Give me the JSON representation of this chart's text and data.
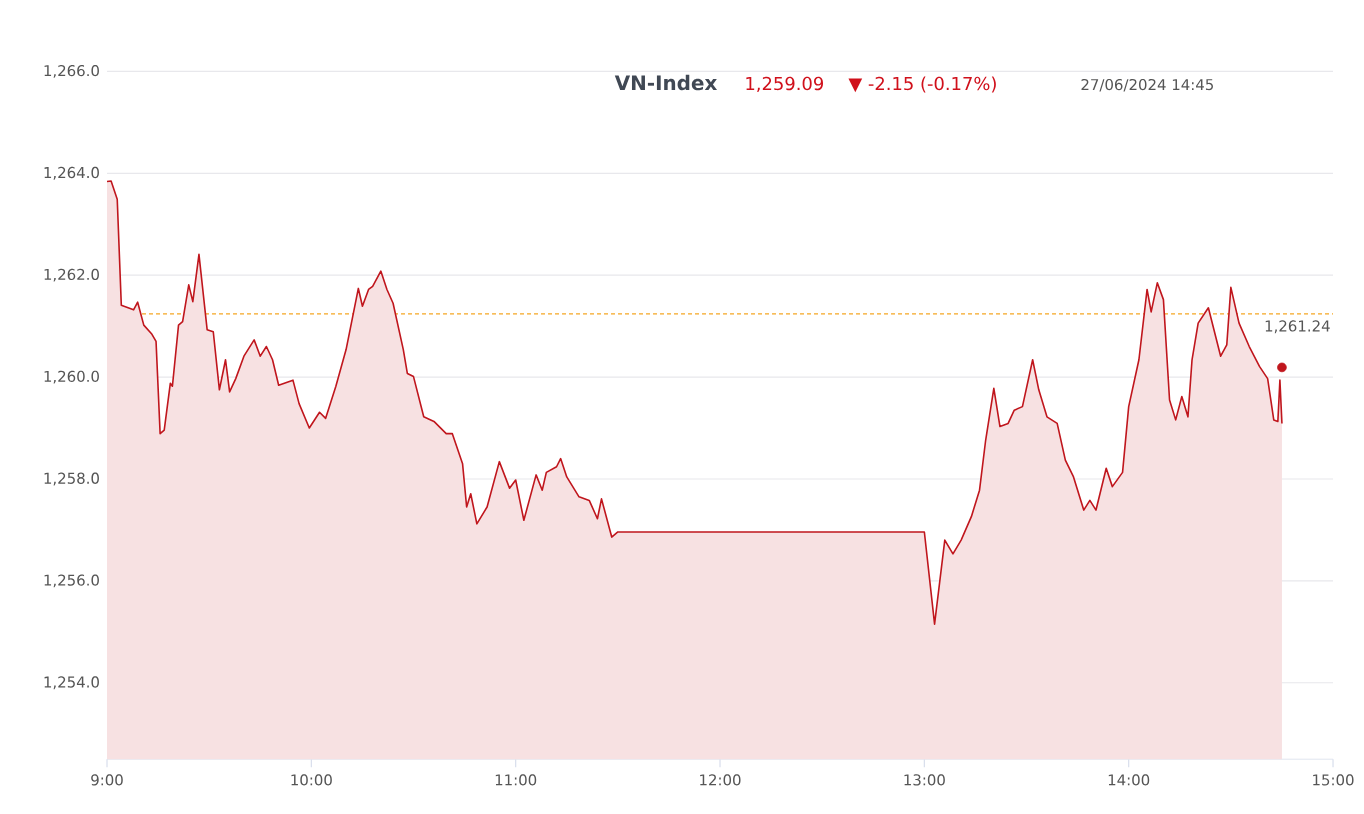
{
  "chart_data": {
    "type": "area",
    "title": "VN-Index",
    "annotations": [
      "1,259.09",
      "▼ -2.15 (-0.17%)",
      "27/06/2024 14:45"
    ],
    "xlim": [
      9,
      15
    ],
    "xticks": [
      {
        "value": 9,
        "label": "9:00"
      },
      {
        "value": 10,
        "label": "10:00"
      },
      {
        "value": 11,
        "label": "11:00"
      },
      {
        "value": 12,
        "label": "12:00"
      },
      {
        "value": 13,
        "label": "13:00"
      },
      {
        "value": 14,
        "label": "14:00"
      },
      {
        "value": 15,
        "label": "15:00"
      }
    ],
    "ylim": [
      1252.5,
      1266
    ],
    "yticks": [
      {
        "value": 1254,
        "label": "1,254.0"
      },
      {
        "value": 1256,
        "label": "1,256.0"
      },
      {
        "value": 1258,
        "label": "1,258.0"
      },
      {
        "value": 1260,
        "label": "1,260.0"
      },
      {
        "value": 1262,
        "label": "1,262.0"
      },
      {
        "value": 1264,
        "label": "1,264.0"
      },
      {
        "value": 1266,
        "label": "1,266.0"
      }
    ],
    "grid": "y",
    "ref_lines": [
      {
        "axis": "y",
        "value": 1261.24,
        "label": "1,261.24",
        "color": "#f5a623",
        "line_style": "dashed"
      }
    ],
    "series": [
      {
        "color": "#c0161d",
        "x": [
          9.0,
          9.02,
          9.05,
          9.07,
          9.13,
          9.15,
          9.18,
          9.22,
          9.24,
          9.26,
          9.28,
          9.31,
          9.32,
          9.35,
          9.37,
          9.4,
          9.42,
          9.45,
          9.49,
          9.52,
          9.55,
          9.58,
          9.6,
          9.63,
          9.67,
          9.72,
          9.75,
          9.78,
          9.81,
          9.84,
          9.91,
          9.94,
          9.99,
          10.04,
          10.07,
          10.12,
          10.17,
          10.23,
          10.25,
          10.28,
          10.3,
          10.34,
          10.37,
          10.4,
          10.45,
          10.47,
          10.5,
          10.55,
          10.6,
          10.66,
          10.69,
          10.74,
          10.76,
          10.78,
          10.81,
          10.86,
          10.92,
          10.97,
          11.0,
          11.04,
          11.1,
          11.13,
          11.15,
          11.2,
          11.22,
          11.25,
          11.31,
          11.36,
          11.4,
          11.42,
          11.47,
          11.5,
          13.0,
          13.05,
          13.1,
          13.14,
          13.18,
          13.23,
          13.27,
          13.3,
          13.34,
          13.37,
          13.41,
          13.44,
          13.48,
          13.53,
          13.56,
          13.6,
          13.65,
          13.69,
          13.73,
          13.78,
          13.81,
          13.84,
          13.89,
          13.92,
          13.97,
          14.0,
          14.05,
          14.09,
          14.11,
          14.14,
          14.17,
          14.2,
          14.23,
          14.26,
          14.29,
          14.31,
          14.34,
          14.39,
          14.45,
          14.48,
          14.5,
          14.54,
          14.59,
          14.64,
          14.68,
          14.71,
          14.73,
          14.74,
          14.75
        ],
        "values": [
          1263.84,
          1263.85,
          1263.49,
          1261.41,
          1261.32,
          1261.47,
          1261.02,
          1260.84,
          1260.7,
          1258.89,
          1258.96,
          1259.88,
          1259.82,
          1261.02,
          1261.09,
          1261.81,
          1261.48,
          1262.41,
          1260.93,
          1260.89,
          1259.75,
          1260.34,
          1259.71,
          1259.97,
          1260.41,
          1260.73,
          1260.41,
          1260.6,
          1260.34,
          1259.84,
          1259.94,
          1259.48,
          1259.0,
          1259.31,
          1259.19,
          1259.82,
          1260.54,
          1261.74,
          1261.39,
          1261.72,
          1261.78,
          1262.08,
          1261.72,
          1261.45,
          1260.54,
          1260.07,
          1260.01,
          1259.22,
          1259.13,
          1258.89,
          1258.89,
          1258.3,
          1257.45,
          1257.71,
          1257.12,
          1257.45,
          1258.34,
          1257.82,
          1257.98,
          1257.19,
          1258.08,
          1257.78,
          1258.13,
          1258.24,
          1258.4,
          1258.04,
          1257.65,
          1257.58,
          1257.22,
          1257.61,
          1256.86,
          1256.96,
          1256.96,
          1255.15,
          1256.8,
          1256.53,
          1256.8,
          1257.26,
          1257.78,
          1258.76,
          1259.78,
          1259.03,
          1259.09,
          1259.35,
          1259.42,
          1260.34,
          1259.75,
          1259.22,
          1259.09,
          1258.37,
          1258.04,
          1257.39,
          1257.58,
          1257.39,
          1258.21,
          1257.85,
          1258.13,
          1259.42,
          1260.34,
          1261.72,
          1261.28,
          1261.85,
          1261.52,
          1259.55,
          1259.16,
          1259.62,
          1259.22,
          1260.34,
          1261.06,
          1261.36,
          1260.41,
          1260.63,
          1261.76,
          1261.06,
          1260.6,
          1260.21,
          1259.97,
          1259.16,
          1259.13,
          1259.94,
          1259.09
        ]
      },
      {
        "type": "scatter",
        "color": "#c0161d",
        "marker": "circle",
        "x": [
          14.75
        ],
        "values": [
          1260.19
        ]
      }
    ]
  }
}
